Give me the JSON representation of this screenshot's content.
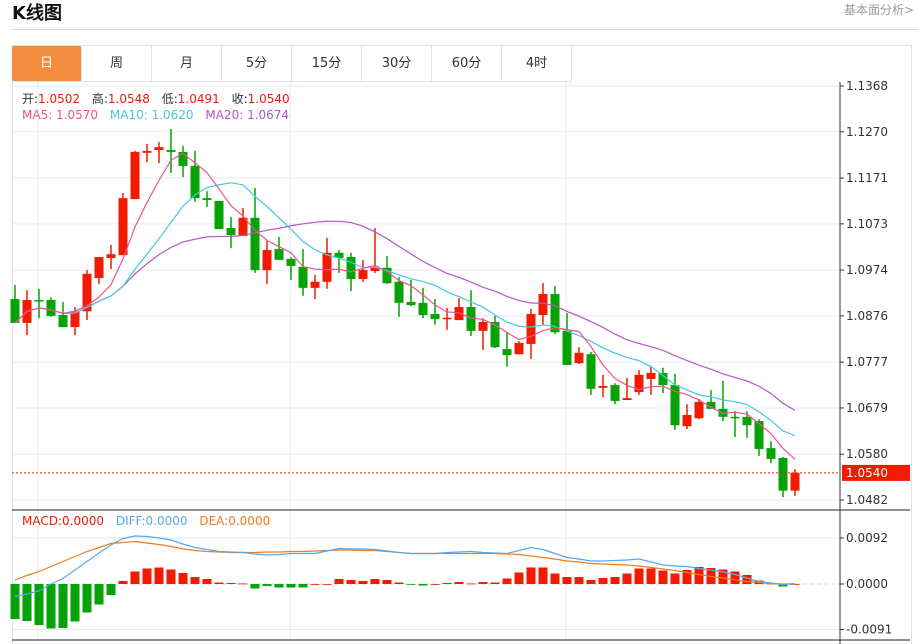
{
  "header": {
    "title": "K线图",
    "link": "基本面分析>"
  },
  "tabs": [
    {
      "label": "日",
      "active": true
    },
    {
      "label": "周"
    },
    {
      "label": "月"
    },
    {
      "label": "5分"
    },
    {
      "label": "15分"
    },
    {
      "label": "30分"
    },
    {
      "label": "60分"
    },
    {
      "label": "4时"
    }
  ],
  "ohlc_legend": {
    "open_label": "开:",
    "open": "1.0502",
    "high_label": "高:",
    "high": "1.0548",
    "low_label": "低:",
    "low": "1.0491",
    "close_label": "收:",
    "close": "1.0540"
  },
  "ma_legend": {
    "ma5": "MA5: 1.0570",
    "ma10": "MA10: 1.0620",
    "ma20": "MA20: 1.0674"
  },
  "macd_legend": {
    "macd": "MACD:0.0000",
    "diff": "DIFF:0.0000",
    "dea": "DEA:0.0000"
  },
  "colors": {
    "up": "#f21a00",
    "down": "#06a306",
    "ma5": "#f0548c",
    "ma10": "#45c8e0",
    "ma20": "#b656c8",
    "diff": "#55a8f0",
    "dea": "#f57a1f",
    "accent": "#f28c3f"
  },
  "chart_data": {
    "type": "candlestick",
    "price_ticks": [
      "1.1368",
      "1.1270",
      "1.1171",
      "1.1073",
      "1.0974",
      "1.0876",
      "1.0777",
      "1.0679",
      "1.0580",
      "1.0482"
    ],
    "price_range": [
      1.0482,
      1.1368
    ],
    "last_price": "1.0540",
    "macd_ticks": [
      "0.0092",
      "0.0000",
      "-0.0091"
    ],
    "macd_range": [
      -0.0091,
      0.0092
    ],
    "ohlc": [
      [
        1.0912,
        1.0942,
        1.0861,
        1.0861
      ],
      [
        1.0861,
        1.0931,
        1.0835,
        1.091
      ],
      [
        1.091,
        1.0934,
        1.0871,
        1.0908
      ],
      [
        1.091,
        1.0916,
        1.0874,
        1.0876
      ],
      [
        1.0878,
        1.0906,
        1.0852,
        1.0852
      ],
      [
        1.0852,
        1.0895,
        1.0835,
        1.0886
      ],
      [
        1.0886,
        1.0974,
        1.0867,
        1.0966
      ],
      [
        1.0957,
        1.1002,
        1.0944,
        1.1002
      ],
      [
        1.1,
        1.1028,
        1.0976,
        1.1008
      ],
      [
        1.1006,
        1.1139,
        1.1006,
        1.1128
      ],
      [
        1.1126,
        1.1229,
        1.1126,
        1.1227
      ],
      [
        1.1225,
        1.1244,
        1.1205,
        1.1229
      ],
      [
        1.1231,
        1.1248,
        1.1203,
        1.1237
      ],
      [
        1.1231,
        1.1276,
        1.1182,
        1.1227
      ],
      [
        1.1227,
        1.124,
        1.1173,
        1.1197
      ],
      [
        1.1197,
        1.1229,
        1.112,
        1.1128
      ],
      [
        1.1128,
        1.1143,
        1.1109,
        1.1124
      ],
      [
        1.1122,
        1.1122,
        1.1062,
        1.1062
      ],
      [
        1.1064,
        1.1088,
        1.1021,
        1.1049
      ],
      [
        1.1047,
        1.1107,
        1.1047,
        1.1086
      ],
      [
        1.1086,
        1.115,
        1.0968,
        1.0974
      ],
      [
        1.0974,
        1.1036,
        1.0944,
        1.1017
      ],
      [
        1.1019,
        1.1045,
        1.0996,
        1.0996
      ],
      [
        1.0998,
        1.1002,
        1.0953,
        1.0983
      ],
      [
        1.0981,
        1.1019,
        1.0919,
        1.0936
      ],
      [
        1.0936,
        1.0964,
        1.0912,
        1.0949
      ],
      [
        1.0949,
        1.1043,
        1.0934,
        1.1011
      ],
      [
        1.1011,
        1.1017,
        1.0968,
        1.1
      ],
      [
        1.1002,
        1.1011,
        1.0929,
        1.0955
      ],
      [
        1.0955,
        1.0996,
        1.0949,
        1.0974
      ],
      [
        1.0972,
        1.1064,
        1.0968,
        1.0979
      ],
      [
        1.0979,
        1.1004,
        1.0944,
        1.0946
      ],
      [
        1.0949,
        1.0959,
        1.0874,
        1.0904
      ],
      [
        1.0906,
        1.0953,
        1.0897,
        1.0899
      ],
      [
        1.0904,
        1.0936,
        1.0871,
        1.0878
      ],
      [
        1.088,
        1.0912,
        1.0857,
        1.0869
      ],
      [
        1.0871,
        1.0893,
        1.0846,
        1.0872
      ],
      [
        1.0867,
        1.0914,
        1.0867,
        1.0895
      ],
      [
        1.0895,
        1.0931,
        1.0833,
        1.0844
      ],
      [
        1.0844,
        1.0871,
        1.0803,
        1.0863
      ],
      [
        1.0863,
        1.0876,
        1.0807,
        1.0809
      ],
      [
        1.0805,
        1.0841,
        1.0767,
        1.0792
      ],
      [
        1.0794,
        1.0822,
        1.0794,
        1.0818
      ],
      [
        1.0816,
        1.0891,
        1.0784,
        1.088
      ],
      [
        1.0878,
        1.0946,
        1.0857,
        1.0923
      ],
      [
        1.0923,
        1.094,
        1.0837,
        1.0841
      ],
      [
        1.0844,
        1.0882,
        1.0771,
        1.0771
      ],
      [
        1.0775,
        1.0809,
        1.0773,
        1.0797
      ],
      [
        1.0794,
        1.0799,
        1.0707,
        1.072
      ],
      [
        1.0722,
        1.075,
        1.0702,
        1.0726
      ],
      [
        1.0728,
        1.0732,
        1.0687,
        1.0694
      ],
      [
        1.0696,
        1.0743,
        1.0696,
        1.07
      ],
      [
        1.0713,
        1.076,
        1.0707,
        1.075
      ],
      [
        1.0741,
        1.0767,
        1.0707,
        1.0754
      ],
      [
        1.0754,
        1.0765,
        1.0711,
        1.0728
      ],
      [
        1.0728,
        1.0752,
        1.0632,
        1.0642
      ],
      [
        1.064,
        1.0687,
        1.0634,
        1.0664
      ],
      [
        1.0657,
        1.0698,
        1.0655,
        1.0692
      ],
      [
        1.0692,
        1.0717,
        1.0677,
        1.0677
      ],
      [
        1.0677,
        1.0737,
        1.0651,
        1.066
      ],
      [
        1.066,
        1.0672,
        1.0617,
        1.0657
      ],
      [
        1.066,
        1.0672,
        1.0615,
        1.0642
      ],
      [
        1.0651,
        1.0655,
        1.0576,
        1.0591
      ],
      [
        1.0593,
        1.0608,
        1.0561,
        1.057
      ],
      [
        1.0572,
        1.0574,
        1.0488,
        1.0502
      ],
      [
        1.0502,
        1.0548,
        1.0491,
        1.054
      ]
    ],
    "macd_hist": [
      -0.007,
      -0.0074,
      -0.0082,
      -0.0089,
      -0.0088,
      -0.0075,
      -0.0057,
      -0.0041,
      -0.0022,
      0.0006,
      0.0025,
      0.0031,
      0.0033,
      0.0029,
      0.0022,
      0.0014,
      0.001,
      0.0003,
      0.0002,
      0.0001,
      -0.0009,
      -0.0004,
      -0.0007,
      -0.0007,
      -0.0007,
      0.0,
      0.0,
      0.001,
      0.0008,
      0.0006,
      0.001,
      0.0008,
      0.0003,
      -0.0001,
      -0.0003,
      0.0,
      0.0002,
      0.0004,
      0.0001,
      0.0004,
      0.0003,
      0.0011,
      0.0023,
      0.0033,
      0.0033,
      0.0021,
      0.0014,
      0.0014,
      0.0008,
      0.0012,
      0.0014,
      0.0021,
      0.0031,
      0.0031,
      0.0027,
      0.0021,
      0.0028,
      0.0034,
      0.0032,
      0.0029,
      0.0025,
      0.0018,
      0.0007,
      0.0001,
      -0.0005,
      0.0
    ],
    "diff": [
      -0.0025,
      -0.002,
      -0.0014,
      0.0,
      0.0011,
      0.0028,
      0.0045,
      0.0062,
      0.0078,
      0.0091,
      0.0096,
      0.0095,
      0.0092,
      0.0088,
      0.008,
      0.0073,
      0.0069,
      0.0065,
      0.0064,
      0.0063,
      0.006,
      0.0058,
      0.0059,
      0.0061,
      0.0061,
      0.0061,
      0.0066,
      0.0071,
      0.007,
      0.007,
      0.0069,
      0.0066,
      0.0063,
      0.0061,
      0.0061,
      0.0061,
      0.0063,
      0.0064,
      0.0065,
      0.0063,
      0.0062,
      0.0061,
      0.0067,
      0.0073,
      0.0069,
      0.0061,
      0.0053,
      0.005,
      0.0046,
      0.0046,
      0.0047,
      0.0048,
      0.005,
      0.0044,
      0.0038,
      0.0036,
      0.0035,
      0.0031,
      0.0028,
      0.0024,
      0.0019,
      0.0012,
      0.0005,
      0.0002,
      -0.0001,
      0.0001
    ],
    "dea": [
      0.0008,
      0.0017,
      0.0025,
      0.0035,
      0.0045,
      0.0055,
      0.0065,
      0.0073,
      0.0081,
      0.0083,
      0.0085,
      0.0082,
      0.0079,
      0.0075,
      0.007,
      0.0067,
      0.0065,
      0.0064,
      0.0063,
      0.0063,
      0.0063,
      0.0064,
      0.0064,
      0.0065,
      0.0065,
      0.0066,
      0.0067,
      0.0068,
      0.0068,
      0.0067,
      0.0067,
      0.0065,
      0.0063,
      0.0061,
      0.0061,
      0.0061,
      0.0061,
      0.0061,
      0.0061,
      0.0061,
      0.0061,
      0.006,
      0.0059,
      0.0056,
      0.0053,
      0.005,
      0.0046,
      0.0044,
      0.0041,
      0.004,
      0.0039,
      0.0038,
      0.0036,
      0.0033,
      0.003,
      0.0027,
      0.0023,
      0.0019,
      0.0015,
      0.0012,
      0.0008,
      0.0005,
      0.0003,
      0.0001,
      0.0,
      0.0
    ]
  }
}
